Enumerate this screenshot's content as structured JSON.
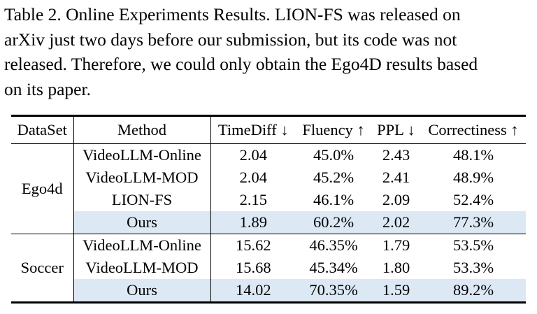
{
  "caption": {
    "lines": [
      "Table 2.  Online Experiments Results.  LION-FS was released on",
      "arXiv just two days before our submission, but its code was not",
      "released. Therefore, we could only obtain the Ego4D results based",
      "on its paper."
    ]
  },
  "table": {
    "headers": [
      "DataSet",
      "Method",
      "TimeDiff ↓",
      "Fluency ↑",
      "PPL ↓",
      "Correctiness ↑"
    ],
    "groups": [
      {
        "dataset": "Ego4d",
        "rows": [
          {
            "method": "VideoLLM-Online",
            "timediff": "2.04",
            "fluency": "45.0%",
            "ppl": "2.43",
            "correctiness": "48.1%",
            "highlight": false
          },
          {
            "method": "VideoLLM-MOD",
            "timediff": "2.04",
            "fluency": "45.2%",
            "ppl": "2.41",
            "correctiness": "48.9%",
            "highlight": false
          },
          {
            "method": "LION-FS",
            "timediff": "2.15",
            "fluency": "46.1%",
            "ppl": "2.09",
            "correctiness": "52.4%",
            "highlight": false
          },
          {
            "method": "Ours",
            "timediff": "1.89",
            "fluency": "60.2%",
            "ppl": "2.02",
            "correctiness": "77.3%",
            "highlight": true
          }
        ]
      },
      {
        "dataset": "Soccer",
        "rows": [
          {
            "method": "VideoLLM-Online",
            "timediff": "15.62",
            "fluency": "46.35%",
            "ppl": "1.79",
            "correctiness": "53.5%",
            "highlight": false
          },
          {
            "method": "VideoLLM-MOD",
            "timediff": "15.68",
            "fluency": "45.34%",
            "ppl": "1.80",
            "correctiness": "53.3%",
            "highlight": false
          },
          {
            "method": "Ours",
            "timediff": "14.02",
            "fluency": "70.35%",
            "ppl": "1.59",
            "correctiness": "89.2%",
            "highlight": true
          }
        ]
      }
    ],
    "highlight_color": "#dce8f4"
  }
}
